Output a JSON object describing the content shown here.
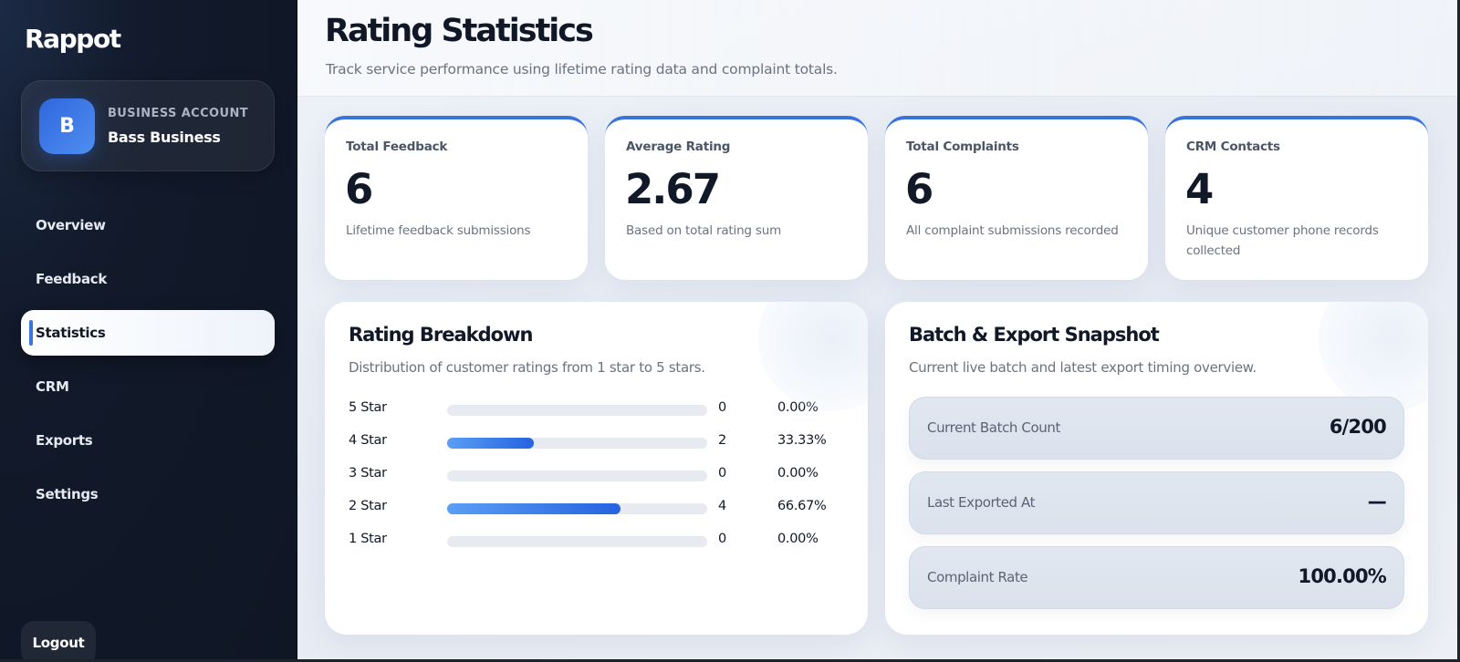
{
  "sidebar": {
    "brand": "Rappot",
    "account": {
      "avatar_letter": "B",
      "label": "BUSINESS ACCOUNT",
      "name": "Bass Business"
    },
    "nav": [
      {
        "label": "Overview",
        "active": false
      },
      {
        "label": "Feedback",
        "active": false
      },
      {
        "label": "Statistics",
        "active": true
      },
      {
        "label": "CRM",
        "active": false
      },
      {
        "label": "Exports",
        "active": false
      },
      {
        "label": "Settings",
        "active": false
      }
    ],
    "logout_label": "Logout"
  },
  "header": {
    "title": "Rating Statistics",
    "subtitle": "Track service performance using lifetime rating data and complaint totals."
  },
  "stats": [
    {
      "label": "Total Feedback",
      "value": "6",
      "desc": "Lifetime feedback submissions"
    },
    {
      "label": "Average Rating",
      "value": "2.67",
      "desc": "Based on total rating sum"
    },
    {
      "label": "Total Complaints",
      "value": "6",
      "desc": "All complaint submissions recorded"
    },
    {
      "label": "CRM Contacts",
      "value": "4",
      "desc": "Unique customer phone records collected"
    }
  ],
  "rating_breakdown": {
    "title": "Rating Breakdown",
    "subtitle": "Distribution of customer ratings from 1 star to 5 stars.",
    "rows": [
      {
        "label": "5 Star",
        "count": "0",
        "percent": "0.00%",
        "fill": 0
      },
      {
        "label": "4 Star",
        "count": "2",
        "percent": "33.33%",
        "fill": 33.33
      },
      {
        "label": "3 Star",
        "count": "0",
        "percent": "0.00%",
        "fill": 0
      },
      {
        "label": "2 Star",
        "count": "4",
        "percent": "66.67%",
        "fill": 66.67
      },
      {
        "label": "1 Star",
        "count": "0",
        "percent": "0.00%",
        "fill": 0
      }
    ]
  },
  "snapshot": {
    "title": "Batch & Export Snapshot",
    "subtitle": "Current live batch and latest export timing overview.",
    "rows": [
      {
        "label": "Current Batch Count",
        "value": "6/200"
      },
      {
        "label": "Last Exported At",
        "value": "—"
      },
      {
        "label": "Complaint Rate",
        "value": "100.00%"
      }
    ]
  },
  "colors": {
    "accent": "#3a74d8",
    "sidebar_bg": "#0f1624",
    "bar_fill_start": "#5b9ef4",
    "bar_fill_end": "#2563e0"
  }
}
